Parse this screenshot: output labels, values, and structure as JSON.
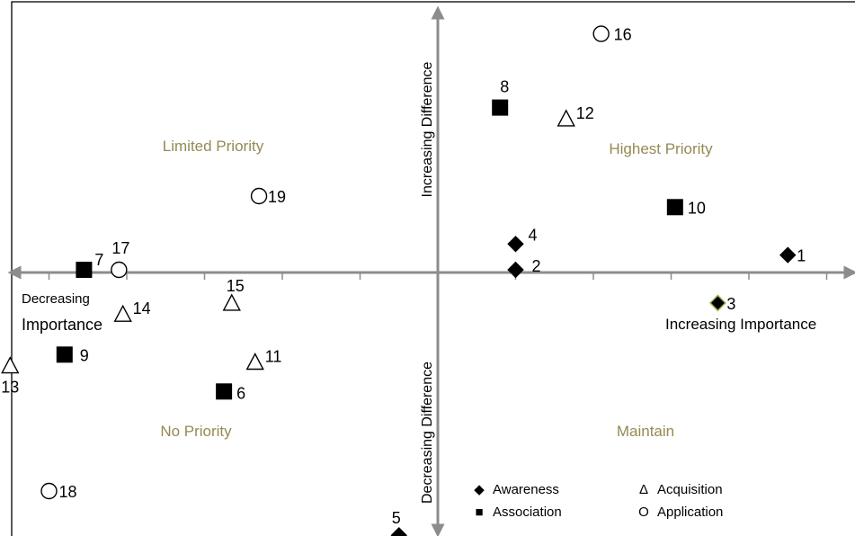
{
  "chart_data": {
    "type": "scatter",
    "title": "",
    "xlabel_positive": "Increasing Importance",
    "xlabel_negative_line1": "Decreasing",
    "xlabel_negative_line2": "Importance",
    "ylabel_positive": "Increasing Difference",
    "ylabel_negative": "Decreasing Difference",
    "xlim": [
      -5.6,
      5.4
    ],
    "ylim": [
      -3.8,
      3.6
    ],
    "grid": false,
    "legend_position": "bottom-center",
    "quadrants": {
      "top_left": "Limited Priority",
      "top_right": "Highest Priority",
      "bottom_left": "No Priority",
      "bottom_right": "Maintain"
    },
    "colors": {
      "axis": "#8c8c8c",
      "quadrant_label": "#948a54",
      "marker": "#000000",
      "frame": "#000000"
    },
    "series": [
      {
        "name": "Awareness",
        "marker": "diamond",
        "legend_symbol": "◆",
        "points": [
          {
            "label": "1",
            "x": 4.5,
            "y": 0.2
          },
          {
            "label": "2",
            "x": 1.0,
            "y": 0.0
          },
          {
            "label": "3",
            "x": 3.6,
            "y": -0.45
          },
          {
            "label": "4",
            "x": 1.0,
            "y": 0.35
          },
          {
            "label": "5",
            "x": -0.5,
            "y": -3.6
          }
        ]
      },
      {
        "name": "Association",
        "marker": "square",
        "legend_symbol": "■",
        "points": [
          {
            "label": "6",
            "x": -2.75,
            "y": -1.65
          },
          {
            "label": "7",
            "x": -4.55,
            "y": 0.0
          },
          {
            "label": "8",
            "x": 0.8,
            "y": 2.2
          },
          {
            "label": "9",
            "x": -4.8,
            "y": -1.15
          },
          {
            "label": "10",
            "x": 3.05,
            "y": 0.85
          }
        ]
      },
      {
        "name": "Acquisition",
        "marker": "triangle",
        "legend_symbol": "Δ",
        "points": [
          {
            "label": "11",
            "x": -2.35,
            "y": -1.25
          },
          {
            "label": "12",
            "x": 1.65,
            "y": 2.05
          },
          {
            "label": "13",
            "x": -5.5,
            "y": -1.3
          },
          {
            "label": "14",
            "x": -4.05,
            "y": -0.6
          },
          {
            "label": "15",
            "x": -2.65,
            "y": -0.45
          }
        ]
      },
      {
        "name": "Application",
        "marker": "circle",
        "legend_symbol": "O",
        "points": [
          {
            "label": "16",
            "x": 2.1,
            "y": 3.2
          },
          {
            "label": "17",
            "x": -4.1,
            "y": 0.0
          },
          {
            "label": "18",
            "x": -5.0,
            "y": -3.0
          },
          {
            "label": "19",
            "x": -2.3,
            "y": 1.0
          }
        ]
      }
    ]
  }
}
